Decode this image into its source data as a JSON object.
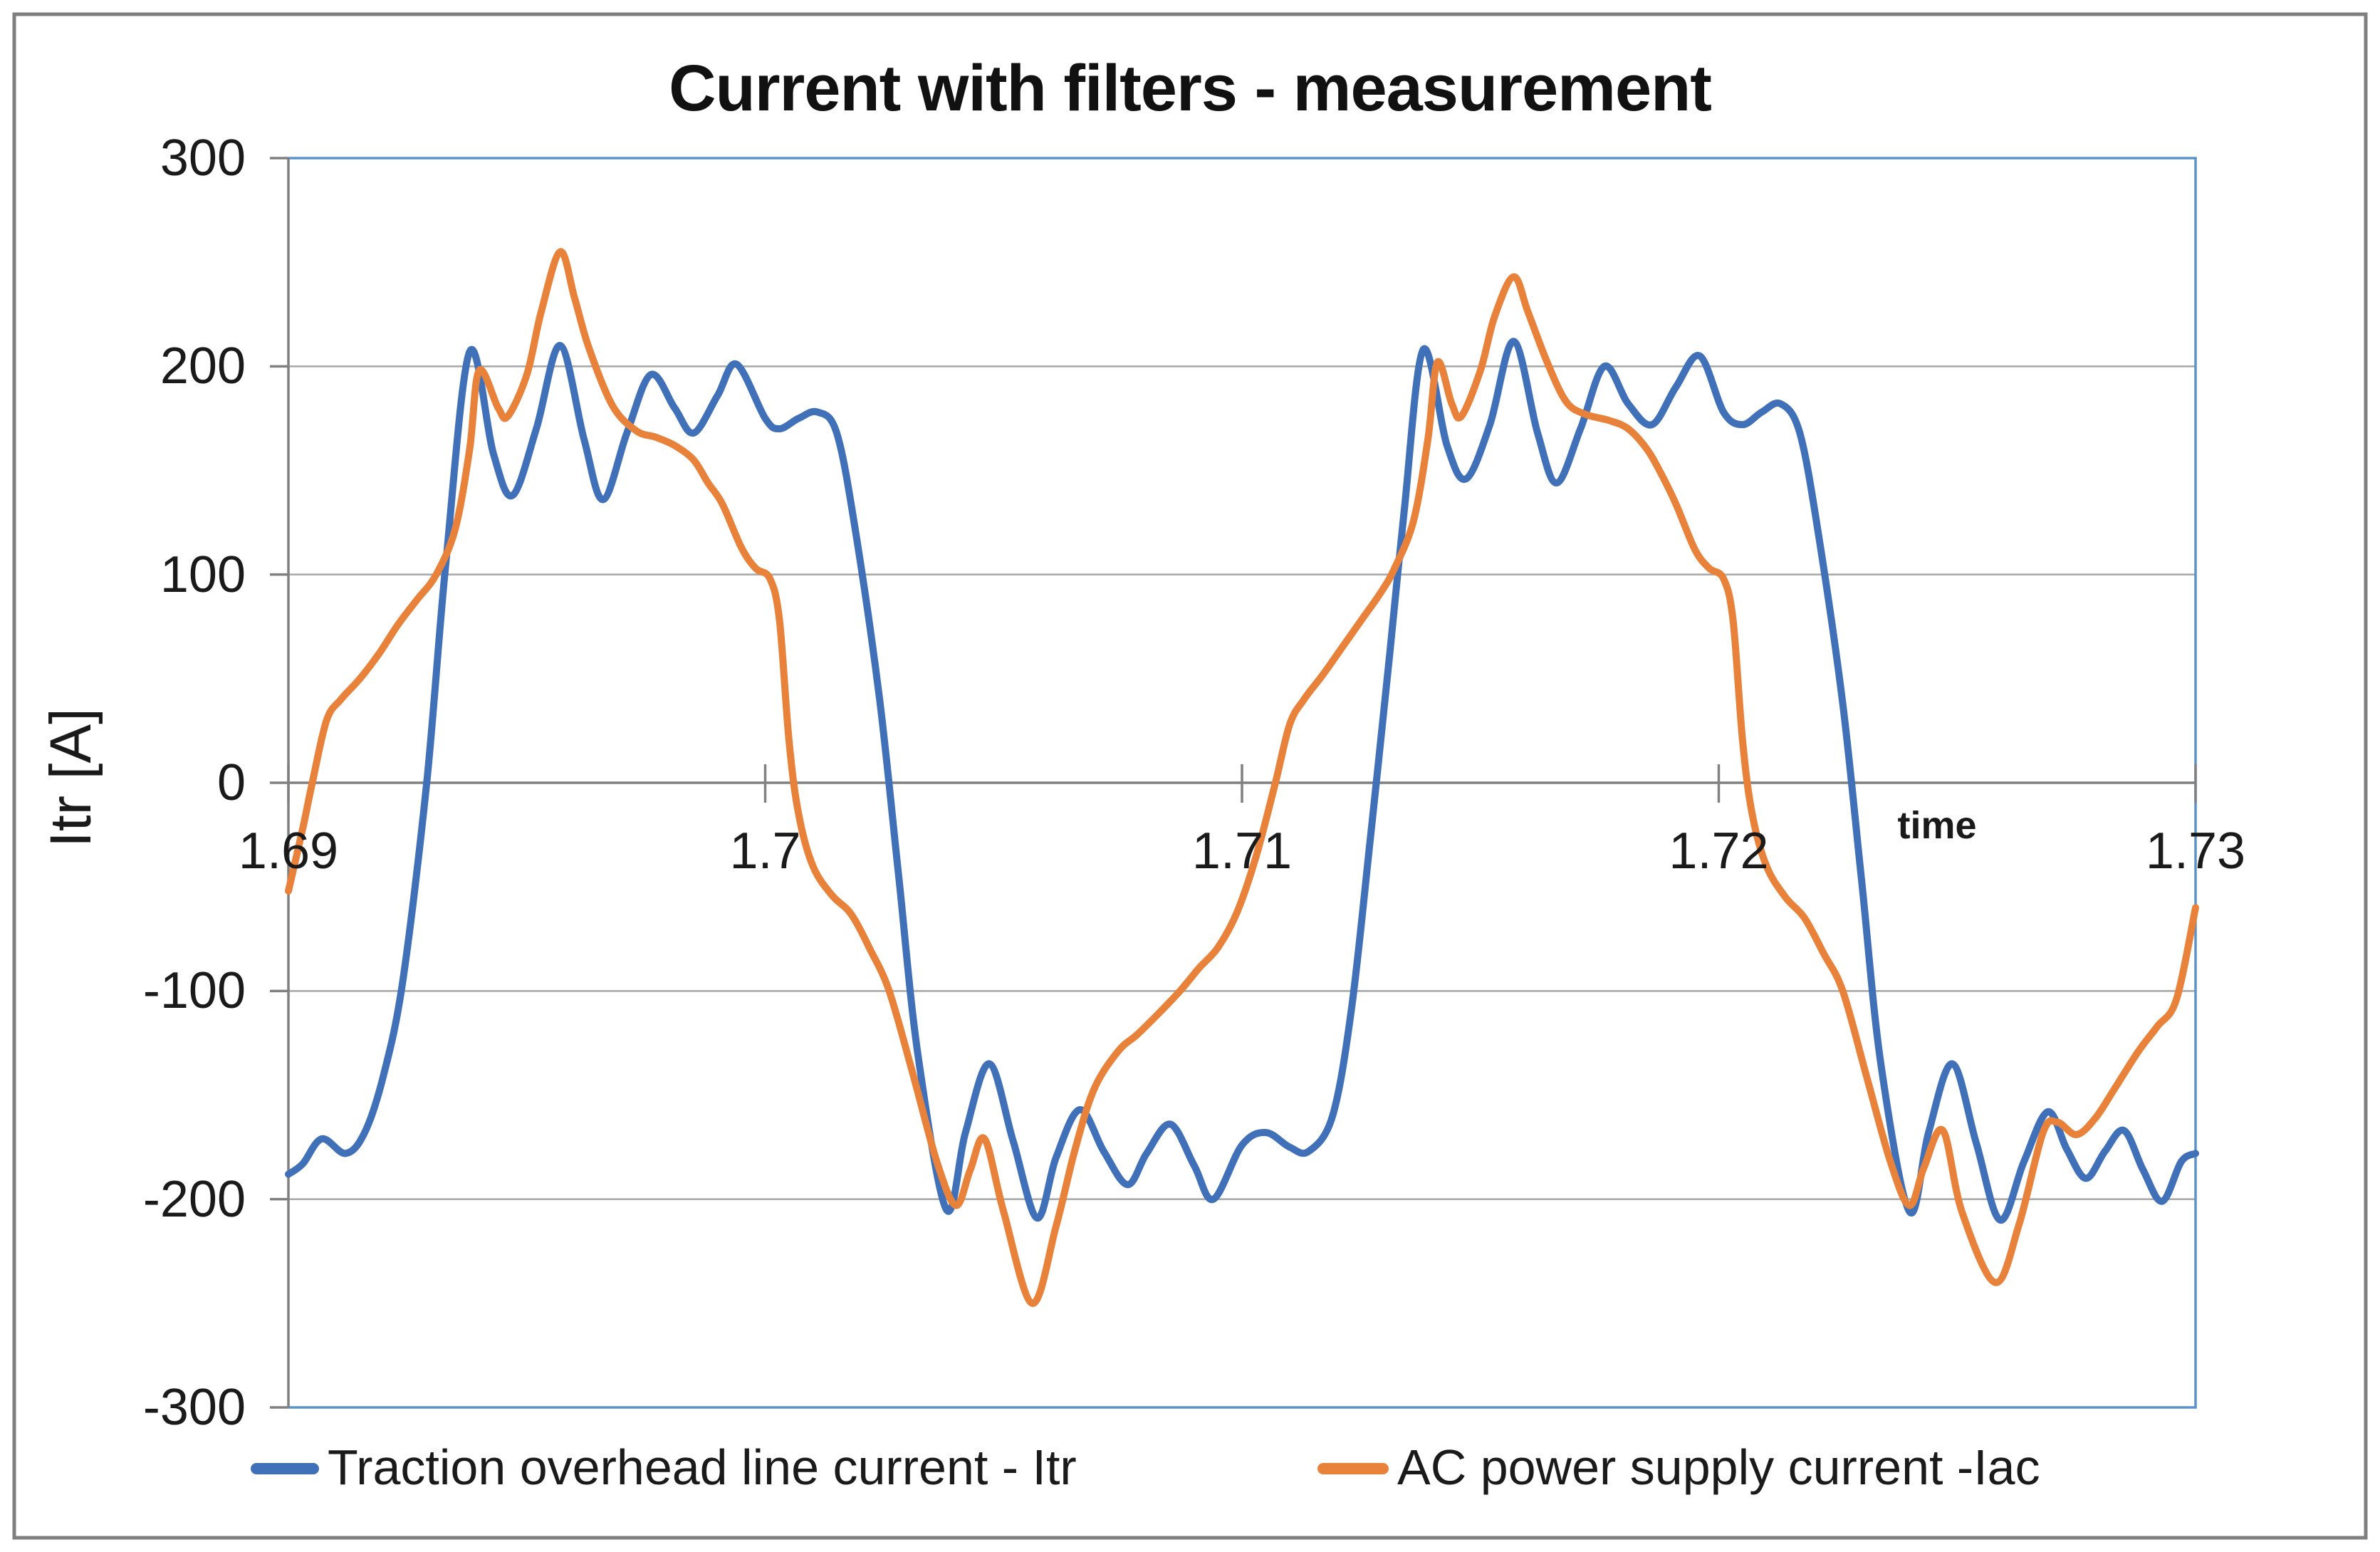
{
  "figure": {
    "border_color": "#7F7F7F",
    "background": "#ffffff"
  },
  "chart_data": {
    "type": "line",
    "title": "Current with filters - measurement",
    "xlabel": "time",
    "ylabel": "Itr [A]",
    "xlim": [
      1.69,
      1.73
    ],
    "ylim": [
      -300,
      300
    ],
    "x_ticks": {
      "values": [
        1.69,
        1.7,
        1.71,
        1.72,
        1.73
      ],
      "labels": [
        "1.69",
        "1.7",
        "1.71",
        "1.72",
        "1.73"
      ]
    },
    "y_ticks": {
      "values": [
        300,
        200,
        100,
        0,
        -100,
        -200,
        -300
      ],
      "labels": [
        "300",
        "200",
        "100",
        "0",
        "-100",
        "-200",
        "-300"
      ]
    },
    "grid": {
      "horizontal_interval": 100,
      "gridline_color": "#A6A6A6",
      "zero_line_color": "#808080",
      "axis_color": "#808080",
      "plot_border_color": "#5C92CC"
    },
    "legend": {
      "position": "bottom",
      "entries": [
        {
          "label": "Traction overhead line current - Itr",
          "color": "#4070B8"
        },
        {
          "label": "AC power supply current -Iac",
          "color": "#E8823A"
        }
      ]
    },
    "series": [
      {
        "name": "Traction overhead line current - Itr",
        "color": "#4070B8",
        "points": [
          [
            1.69,
            -188
          ],
          [
            1.6903,
            -183
          ],
          [
            1.6907,
            -171
          ],
          [
            1.6912,
            -178
          ],
          [
            1.6916,
            -168
          ],
          [
            1.692,
            -140
          ],
          [
            1.6924,
            -95
          ],
          [
            1.6929,
            0
          ],
          [
            1.6933,
            105
          ],
          [
            1.6938,
            207
          ],
          [
            1.6943,
            158
          ],
          [
            1.6947,
            138
          ],
          [
            1.6952,
            170
          ],
          [
            1.6957,
            210
          ],
          [
            1.6962,
            165
          ],
          [
            1.6966,
            136
          ],
          [
            1.6971,
            168
          ],
          [
            1.6976,
            196
          ],
          [
            1.6981,
            180
          ],
          [
            1.6985,
            168
          ],
          [
            1.699,
            186
          ],
          [
            1.6994,
            201
          ],
          [
            1.7,
            175
          ],
          [
            1.7003,
            170
          ],
          [
            1.7007,
            175
          ],
          [
            1.7011,
            178
          ],
          [
            1.7015,
            168
          ],
          [
            1.7019,
            120
          ],
          [
            1.7024,
            40
          ],
          [
            1.7028,
            -45
          ],
          [
            1.7032,
            -130
          ],
          [
            1.7038,
            -205
          ],
          [
            1.7042,
            -168
          ],
          [
            1.7047,
            -135
          ],
          [
            1.7052,
            -172
          ],
          [
            1.7057,
            -209
          ],
          [
            1.7061,
            -180
          ],
          [
            1.7066,
            -157
          ],
          [
            1.7071,
            -177
          ],
          [
            1.7076,
            -193
          ],
          [
            1.708,
            -178
          ],
          [
            1.7085,
            -164
          ],
          [
            1.709,
            -184
          ],
          [
            1.7094,
            -200
          ],
          [
            1.71,
            -174
          ],
          [
            1.7105,
            -168
          ],
          [
            1.711,
            -175
          ],
          [
            1.7114,
            -177
          ],
          [
            1.7119,
            -160
          ],
          [
            1.7123,
            -108
          ],
          [
            1.7127,
            -25
          ],
          [
            1.7131,
            62
          ],
          [
            1.7134,
            130
          ],
          [
            1.7138,
            208
          ],
          [
            1.7143,
            162
          ],
          [
            1.7147,
            146
          ],
          [
            1.7152,
            172
          ],
          [
            1.7157,
            212
          ],
          [
            1.7162,
            168
          ],
          [
            1.7166,
            144
          ],
          [
            1.7171,
            170
          ],
          [
            1.7176,
            200
          ],
          [
            1.7181,
            182
          ],
          [
            1.7186,
            172
          ],
          [
            1.7191,
            190
          ],
          [
            1.7196,
            205
          ],
          [
            1.7201,
            178
          ],
          [
            1.7205,
            172
          ],
          [
            1.7209,
            178
          ],
          [
            1.7213,
            182
          ],
          [
            1.7217,
            168
          ],
          [
            1.7221,
            118
          ],
          [
            1.7226,
            38
          ],
          [
            1.723,
            -48
          ],
          [
            1.7234,
            -135
          ],
          [
            1.724,
            -206
          ],
          [
            1.7244,
            -168
          ],
          [
            1.7249,
            -135
          ],
          [
            1.7254,
            -173
          ],
          [
            1.7259,
            -210
          ],
          [
            1.7264,
            -182
          ],
          [
            1.7269,
            -158
          ],
          [
            1.7273,
            -176
          ],
          [
            1.7277,
            -190
          ],
          [
            1.7281,
            -177
          ],
          [
            1.7285,
            -167
          ],
          [
            1.7289,
            -186
          ],
          [
            1.7293,
            -201
          ],
          [
            1.7297,
            -182
          ],
          [
            1.73,
            -178
          ]
        ]
      },
      {
        "name": "AC power supply current -Iac",
        "color": "#E8823A",
        "points": [
          [
            1.69,
            -52
          ],
          [
            1.6903,
            -22
          ],
          [
            1.6905,
            0
          ],
          [
            1.6908,
            30
          ],
          [
            1.6911,
            40
          ],
          [
            1.6915,
            50
          ],
          [
            1.6919,
            62
          ],
          [
            1.6923,
            76
          ],
          [
            1.6927,
            88
          ],
          [
            1.6931,
            100
          ],
          [
            1.6935,
            122
          ],
          [
            1.6938,
            160
          ],
          [
            1.694,
            198
          ],
          [
            1.6944,
            180
          ],
          [
            1.6946,
            176
          ],
          [
            1.695,
            196
          ],
          [
            1.6953,
            226
          ],
          [
            1.6957,
            255
          ],
          [
            1.696,
            233
          ],
          [
            1.6963,
            209
          ],
          [
            1.6968,
            181
          ],
          [
            1.6973,
            169
          ],
          [
            1.6977,
            166
          ],
          [
            1.6981,
            162
          ],
          [
            1.6985,
            155
          ],
          [
            1.6988,
            144
          ],
          [
            1.6991,
            134
          ],
          [
            1.6995,
            113
          ],
          [
            1.6998,
            103
          ],
          [
            1.7001,
            98
          ],
          [
            1.7003,
            78
          ],
          [
            1.7005,
            20
          ],
          [
            1.7007,
            -15
          ],
          [
            1.701,
            -40
          ],
          [
            1.7014,
            -54
          ],
          [
            1.7018,
            -63
          ],
          [
            1.7022,
            -80
          ],
          [
            1.7026,
            -100
          ],
          [
            1.7031,
            -140
          ],
          [
            1.7036,
            -182
          ],
          [
            1.704,
            -203
          ],
          [
            1.7043,
            -186
          ],
          [
            1.7046,
            -171
          ],
          [
            1.705,
            -206
          ],
          [
            1.7056,
            -250
          ],
          [
            1.7061,
            -213
          ],
          [
            1.7065,
            -176
          ],
          [
            1.7069,
            -147
          ],
          [
            1.7074,
            -129
          ],
          [
            1.7078,
            -121
          ],
          [
            1.7082,
            -112
          ],
          [
            1.7087,
            -100
          ],
          [
            1.7091,
            -89
          ],
          [
            1.7095,
            -79
          ],
          [
            1.7099,
            -62
          ],
          [
            1.7103,
            -35
          ],
          [
            1.7107,
            0
          ],
          [
            1.711,
            28
          ],
          [
            1.7113,
            40
          ],
          [
            1.7117,
            52
          ],
          [
            1.7121,
            65
          ],
          [
            1.7125,
            78
          ],
          [
            1.7129,
            91
          ],
          [
            1.7132,
            103
          ],
          [
            1.7136,
            126
          ],
          [
            1.7139,
            165
          ],
          [
            1.7141,
            202
          ],
          [
            1.7144,
            182
          ],
          [
            1.7146,
            176
          ],
          [
            1.715,
            198
          ],
          [
            1.7153,
            224
          ],
          [
            1.7157,
            243
          ],
          [
            1.716,
            226
          ],
          [
            1.7164,
            202
          ],
          [
            1.7168,
            183
          ],
          [
            1.7172,
            177
          ],
          [
            1.7177,
            174
          ],
          [
            1.7181,
            170
          ],
          [
            1.7185,
            160
          ],
          [
            1.7188,
            148
          ],
          [
            1.7191,
            134
          ],
          [
            1.7195,
            112
          ],
          [
            1.7198,
            103
          ],
          [
            1.7201,
            98
          ],
          [
            1.7203,
            78
          ],
          [
            1.7205,
            20
          ],
          [
            1.7207,
            -15
          ],
          [
            1.721,
            -40
          ],
          [
            1.7214,
            -55
          ],
          [
            1.7218,
            -65
          ],
          [
            1.7222,
            -82
          ],
          [
            1.7226,
            -100
          ],
          [
            1.7231,
            -141
          ],
          [
            1.7236,
            -182
          ],
          [
            1.724,
            -203
          ],
          [
            1.7243,
            -185
          ],
          [
            1.7247,
            -167
          ],
          [
            1.7251,
            -206
          ],
          [
            1.7258,
            -240
          ],
          [
            1.7263,
            -212
          ],
          [
            1.7268,
            -168
          ],
          [
            1.7271,
            -163
          ],
          [
            1.7275,
            -169
          ],
          [
            1.7279,
            -161
          ],
          [
            1.7283,
            -147
          ],
          [
            1.7288,
            -129
          ],
          [
            1.7292,
            -117
          ],
          [
            1.7296,
            -104
          ],
          [
            1.73,
            -60
          ]
        ]
      }
    ]
  }
}
